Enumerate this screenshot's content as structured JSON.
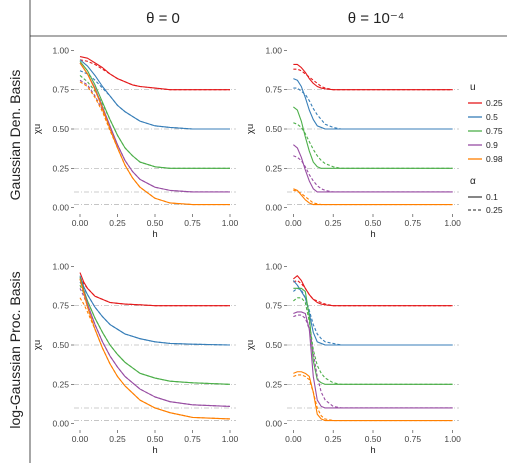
{
  "columns": [
    "θ = 0",
    "θ = 10⁻⁴"
  ],
  "rows": [
    "Gaussian Den. Basis",
    "log-Gaussian Proc. Basis"
  ],
  "legend": {
    "u_title": "u",
    "u_items": [
      {
        "label": "0.25",
        "color": "#e41a1c"
      },
      {
        "label": "0.5",
        "color": "#377eb8"
      },
      {
        "label": "0.75",
        "color": "#4daf4a"
      },
      {
        "label": "0.9",
        "color": "#984ea3"
      },
      {
        "label": "0.98",
        "color": "#ff7f00"
      }
    ],
    "alpha_title": "α",
    "alpha_items": [
      {
        "label": "0.1",
        "dash": "solid"
      },
      {
        "label": "0.25",
        "dash": "dashed"
      }
    ]
  },
  "chart_data": [
    {
      "type": "line",
      "panel": "Gaussian Den. Basis / θ = 0",
      "xlabel": "h",
      "ylabel": "χu",
      "xlim": [
        0,
        1
      ],
      "ylim": [
        0,
        1
      ],
      "xticks": [
        "0.00",
        "0.25",
        "0.50",
        "0.75",
        "1.00"
      ],
      "yticks": [
        "0.00",
        "0.25",
        "0.50",
        "0.75",
        "1.00"
      ],
      "reference_lines": [
        0.75,
        0.5,
        0.25,
        0.1,
        0.02
      ],
      "x": [
        0,
        0.05,
        0.1,
        0.15,
        0.2,
        0.25,
        0.3,
        0.35,
        0.4,
        0.5,
        0.6,
        0.75,
        1.0
      ],
      "series": [
        {
          "name": "u=0.25, α=0.1",
          "values": [
            0.96,
            0.95,
            0.92,
            0.89,
            0.85,
            0.82,
            0.8,
            0.78,
            0.77,
            0.76,
            0.75,
            0.75,
            0.75
          ]
        },
        {
          "name": "u=0.25, α=0.25",
          "values": [
            0.94,
            0.93,
            0.91,
            0.88,
            0.85,
            0.82,
            0.8,
            0.78,
            0.77,
            0.76,
            0.75,
            0.75,
            0.75
          ]
        },
        {
          "name": "u=0.5, α=0.1",
          "values": [
            0.94,
            0.9,
            0.84,
            0.77,
            0.71,
            0.65,
            0.61,
            0.58,
            0.55,
            0.52,
            0.51,
            0.5,
            0.5
          ]
        },
        {
          "name": "u=0.5, α=0.25",
          "values": [
            0.87,
            0.85,
            0.81,
            0.76,
            0.71,
            0.65,
            0.61,
            0.58,
            0.55,
            0.52,
            0.51,
            0.5,
            0.5
          ]
        },
        {
          "name": "u=0.75, α=0.1",
          "values": [
            0.93,
            0.87,
            0.78,
            0.67,
            0.56,
            0.46,
            0.38,
            0.33,
            0.29,
            0.26,
            0.25,
            0.25,
            0.25
          ]
        },
        {
          "name": "u=0.75, α=0.25",
          "values": [
            0.84,
            0.8,
            0.74,
            0.66,
            0.56,
            0.46,
            0.38,
            0.33,
            0.29,
            0.26,
            0.25,
            0.25,
            0.25
          ]
        },
        {
          "name": "u=0.9, α=0.1",
          "values": [
            0.92,
            0.85,
            0.76,
            0.64,
            0.52,
            0.4,
            0.3,
            0.23,
            0.18,
            0.13,
            0.11,
            0.1,
            0.1
          ]
        },
        {
          "name": "u=0.9, α=0.25",
          "values": [
            0.81,
            0.78,
            0.71,
            0.62,
            0.51,
            0.4,
            0.3,
            0.23,
            0.18,
            0.13,
            0.11,
            0.1,
            0.1
          ]
        },
        {
          "name": "u=0.98, α=0.1",
          "values": [
            0.92,
            0.85,
            0.75,
            0.63,
            0.5,
            0.38,
            0.27,
            0.19,
            0.13,
            0.06,
            0.03,
            0.02,
            0.02
          ]
        },
        {
          "name": "u=0.98, α=0.25",
          "values": [
            0.8,
            0.77,
            0.7,
            0.61,
            0.49,
            0.38,
            0.27,
            0.19,
            0.13,
            0.06,
            0.03,
            0.02,
            0.02
          ]
        }
      ]
    },
    {
      "type": "line",
      "panel": "Gaussian Den. Basis / θ = 10⁻⁴",
      "xlabel": "h",
      "ylabel": "χu",
      "xlim": [
        0,
        1
      ],
      "ylim": [
        0,
        1
      ],
      "xticks": [
        "0.00",
        "0.25",
        "0.50",
        "0.75",
        "1.00"
      ],
      "yticks": [
        "0.00",
        "0.25",
        "0.50",
        "0.75",
        "1.00"
      ],
      "reference_lines": [
        0.75,
        0.5,
        0.25,
        0.1,
        0.02
      ],
      "x": [
        0,
        0.025,
        0.05,
        0.075,
        0.1,
        0.125,
        0.15,
        0.175,
        0.2,
        0.25,
        0.3,
        0.4,
        0.5,
        0.75,
        1.0
      ],
      "series": [
        {
          "name": "u=0.25, α=0.1",
          "values": [
            0.91,
            0.91,
            0.89,
            0.86,
            0.82,
            0.79,
            0.77,
            0.76,
            0.755,
            0.75,
            0.75,
            0.75,
            0.75,
            0.75,
            0.75
          ]
        },
        {
          "name": "u=0.25, α=0.25",
          "values": [
            0.88,
            0.88,
            0.87,
            0.85,
            0.83,
            0.81,
            0.79,
            0.77,
            0.76,
            0.75,
            0.75,
            0.75,
            0.75,
            0.75,
            0.75
          ]
        },
        {
          "name": "u=0.5, α=0.1",
          "values": [
            0.82,
            0.81,
            0.77,
            0.7,
            0.62,
            0.56,
            0.52,
            0.51,
            0.5,
            0.5,
            0.5,
            0.5,
            0.5,
            0.5,
            0.5
          ]
        },
        {
          "name": "u=0.5, α=0.25",
          "values": [
            0.76,
            0.76,
            0.74,
            0.72,
            0.68,
            0.63,
            0.59,
            0.56,
            0.53,
            0.51,
            0.5,
            0.5,
            0.5,
            0.5,
            0.5
          ]
        },
        {
          "name": "u=0.75, α=0.1",
          "values": [
            0.64,
            0.62,
            0.55,
            0.45,
            0.36,
            0.29,
            0.26,
            0.25,
            0.25,
            0.25,
            0.25,
            0.25,
            0.25,
            0.25,
            0.25
          ]
        },
        {
          "name": "u=0.75, α=0.25",
          "values": [
            0.54,
            0.53,
            0.51,
            0.47,
            0.42,
            0.37,
            0.33,
            0.3,
            0.28,
            0.26,
            0.25,
            0.25,
            0.25,
            0.25,
            0.25
          ]
        },
        {
          "name": "u=0.9, α=0.1",
          "values": [
            0.4,
            0.38,
            0.32,
            0.24,
            0.17,
            0.12,
            0.1,
            0.1,
            0.1,
            0.1,
            0.1,
            0.1,
            0.1,
            0.1,
            0.1
          ]
        },
        {
          "name": "u=0.9, α=0.25",
          "values": [
            0.33,
            0.32,
            0.3,
            0.26,
            0.21,
            0.17,
            0.14,
            0.12,
            0.11,
            0.1,
            0.1,
            0.1,
            0.1,
            0.1,
            0.1
          ]
        },
        {
          "name": "u=0.98, α=0.1",
          "values": [
            0.12,
            0.11,
            0.08,
            0.05,
            0.03,
            0.02,
            0.02,
            0.02,
            0.02,
            0.02,
            0.02,
            0.02,
            0.02,
            0.02,
            0.02
          ]
        },
        {
          "name": "u=0.98, α=0.25",
          "values": [
            0.11,
            0.105,
            0.09,
            0.07,
            0.05,
            0.03,
            0.025,
            0.02,
            0.02,
            0.02,
            0.02,
            0.02,
            0.02,
            0.02,
            0.02
          ]
        }
      ]
    },
    {
      "type": "line",
      "panel": "log-Gaussian Proc. Basis / θ = 0",
      "xlabel": "h",
      "ylabel": "χu",
      "xlim": [
        0,
        1
      ],
      "ylim": [
        0,
        1
      ],
      "xticks": [
        "0.00",
        "0.25",
        "0.50",
        "0.75",
        "1.00"
      ],
      "yticks": [
        "0.00",
        "0.25",
        "0.50",
        "0.75",
        "1.00"
      ],
      "reference_lines": [
        0.75,
        0.5,
        0.25,
        0.1,
        0.02
      ],
      "x": [
        0,
        0.025,
        0.05,
        0.1,
        0.15,
        0.2,
        0.25,
        0.3,
        0.4,
        0.5,
        0.6,
        0.75,
        1.0
      ],
      "series": [
        {
          "name": "u=0.25, α=0.1",
          "values": [
            0.96,
            0.9,
            0.86,
            0.81,
            0.79,
            0.77,
            0.765,
            0.76,
            0.755,
            0.75,
            0.75,
            0.75,
            0.75
          ]
        },
        {
          "name": "u=0.25, α=0.25",
          "values": [
            0.93,
            0.89,
            0.86,
            0.81,
            0.79,
            0.77,
            0.765,
            0.76,
            0.755,
            0.75,
            0.75,
            0.75,
            0.75
          ]
        },
        {
          "name": "u=0.5, α=0.1",
          "values": [
            0.94,
            0.87,
            0.82,
            0.74,
            0.68,
            0.63,
            0.6,
            0.57,
            0.54,
            0.52,
            0.51,
            0.505,
            0.5
          ]
        },
        {
          "name": "u=0.5, α=0.25",
          "values": [
            0.9,
            0.86,
            0.82,
            0.74,
            0.68,
            0.63,
            0.6,
            0.57,
            0.54,
            0.52,
            0.51,
            0.505,
            0.5
          ]
        },
        {
          "name": "u=0.75, α=0.1",
          "values": [
            0.93,
            0.85,
            0.78,
            0.67,
            0.58,
            0.5,
            0.44,
            0.39,
            0.32,
            0.29,
            0.27,
            0.26,
            0.25
          ]
        },
        {
          "name": "u=0.75, α=0.25",
          "values": [
            0.88,
            0.83,
            0.78,
            0.67,
            0.58,
            0.5,
            0.44,
            0.39,
            0.32,
            0.29,
            0.27,
            0.26,
            0.25
          ]
        },
        {
          "name": "u=0.9, α=0.1",
          "values": [
            0.92,
            0.84,
            0.76,
            0.63,
            0.52,
            0.43,
            0.36,
            0.3,
            0.22,
            0.17,
            0.14,
            0.12,
            0.11
          ]
        },
        {
          "name": "u=0.9, α=0.25",
          "values": [
            0.86,
            0.81,
            0.75,
            0.63,
            0.52,
            0.43,
            0.36,
            0.3,
            0.22,
            0.17,
            0.14,
            0.12,
            0.11
          ]
        },
        {
          "name": "u=0.98, α=0.1",
          "values": [
            0.92,
            0.83,
            0.74,
            0.6,
            0.48,
            0.38,
            0.3,
            0.24,
            0.15,
            0.1,
            0.07,
            0.04,
            0.03
          ]
        },
        {
          "name": "u=0.98, α=0.25",
          "values": [
            0.8,
            0.76,
            0.71,
            0.6,
            0.48,
            0.38,
            0.3,
            0.24,
            0.15,
            0.1,
            0.07,
            0.04,
            0.03
          ]
        }
      ]
    },
    {
      "type": "line",
      "panel": "log-Gaussian Proc. Basis / θ = 10⁻⁴",
      "xlabel": "h",
      "ylabel": "χu",
      "xlim": [
        0,
        1
      ],
      "ylim": [
        0,
        1
      ],
      "xticks": [
        "0.00",
        "0.25",
        "0.50",
        "0.75",
        "1.00"
      ],
      "yticks": [
        "0.00",
        "0.25",
        "0.50",
        "0.75",
        "1.00"
      ],
      "reference_lines": [
        0.75,
        0.5,
        0.25,
        0.1,
        0.02
      ],
      "x": [
        0,
        0.025,
        0.05,
        0.075,
        0.1,
        0.125,
        0.15,
        0.175,
        0.2,
        0.25,
        0.3,
        0.4,
        0.5,
        0.75,
        1.0
      ],
      "series": [
        {
          "name": "u=0.25, α=0.1",
          "values": [
            0.92,
            0.94,
            0.91,
            0.86,
            0.82,
            0.79,
            0.77,
            0.76,
            0.755,
            0.75,
            0.75,
            0.75,
            0.75,
            0.75,
            0.75
          ]
        },
        {
          "name": "u=0.25, α=0.25",
          "values": [
            0.9,
            0.91,
            0.89,
            0.86,
            0.82,
            0.79,
            0.78,
            0.77,
            0.76,
            0.75,
            0.75,
            0.75,
            0.75,
            0.75,
            0.75
          ]
        },
        {
          "name": "u=0.5, α=0.1",
          "values": [
            0.91,
            0.88,
            0.84,
            0.8,
            0.7,
            0.58,
            0.52,
            0.51,
            0.5,
            0.5,
            0.5,
            0.5,
            0.5,
            0.5,
            0.5
          ]
        },
        {
          "name": "u=0.5, α=0.25",
          "values": [
            0.84,
            0.86,
            0.85,
            0.8,
            0.72,
            0.63,
            0.57,
            0.54,
            0.52,
            0.51,
            0.5,
            0.5,
            0.5,
            0.5,
            0.5
          ]
        },
        {
          "name": "u=0.75, α=0.1",
          "values": [
            0.86,
            0.86,
            0.86,
            0.84,
            0.68,
            0.4,
            0.28,
            0.26,
            0.25,
            0.25,
            0.25,
            0.25,
            0.25,
            0.25,
            0.25
          ]
        },
        {
          "name": "u=0.75, α=0.25",
          "values": [
            0.78,
            0.8,
            0.8,
            0.77,
            0.65,
            0.47,
            0.37,
            0.32,
            0.29,
            0.26,
            0.25,
            0.25,
            0.25,
            0.25,
            0.25
          ]
        },
        {
          "name": "u=0.9, α=0.1",
          "values": [
            0.7,
            0.71,
            0.71,
            0.7,
            0.6,
            0.3,
            0.15,
            0.11,
            0.1,
            0.1,
            0.1,
            0.1,
            0.1,
            0.1,
            0.1
          ]
        },
        {
          "name": "u=0.9, α=0.25",
          "values": [
            0.68,
            0.69,
            0.69,
            0.67,
            0.6,
            0.45,
            0.3,
            0.2,
            0.15,
            0.11,
            0.1,
            0.1,
            0.1,
            0.1,
            0.1
          ]
        },
        {
          "name": "u=0.98, α=0.1",
          "values": [
            0.32,
            0.33,
            0.33,
            0.32,
            0.3,
            0.2,
            0.06,
            0.03,
            0.02,
            0.02,
            0.02,
            0.02,
            0.02,
            0.02,
            0.02
          ]
        },
        {
          "name": "u=0.98, α=0.25",
          "values": [
            0.3,
            0.31,
            0.31,
            0.3,
            0.28,
            0.2,
            0.1,
            0.05,
            0.03,
            0.02,
            0.02,
            0.02,
            0.02,
            0.02,
            0.02
          ]
        }
      ]
    }
  ]
}
